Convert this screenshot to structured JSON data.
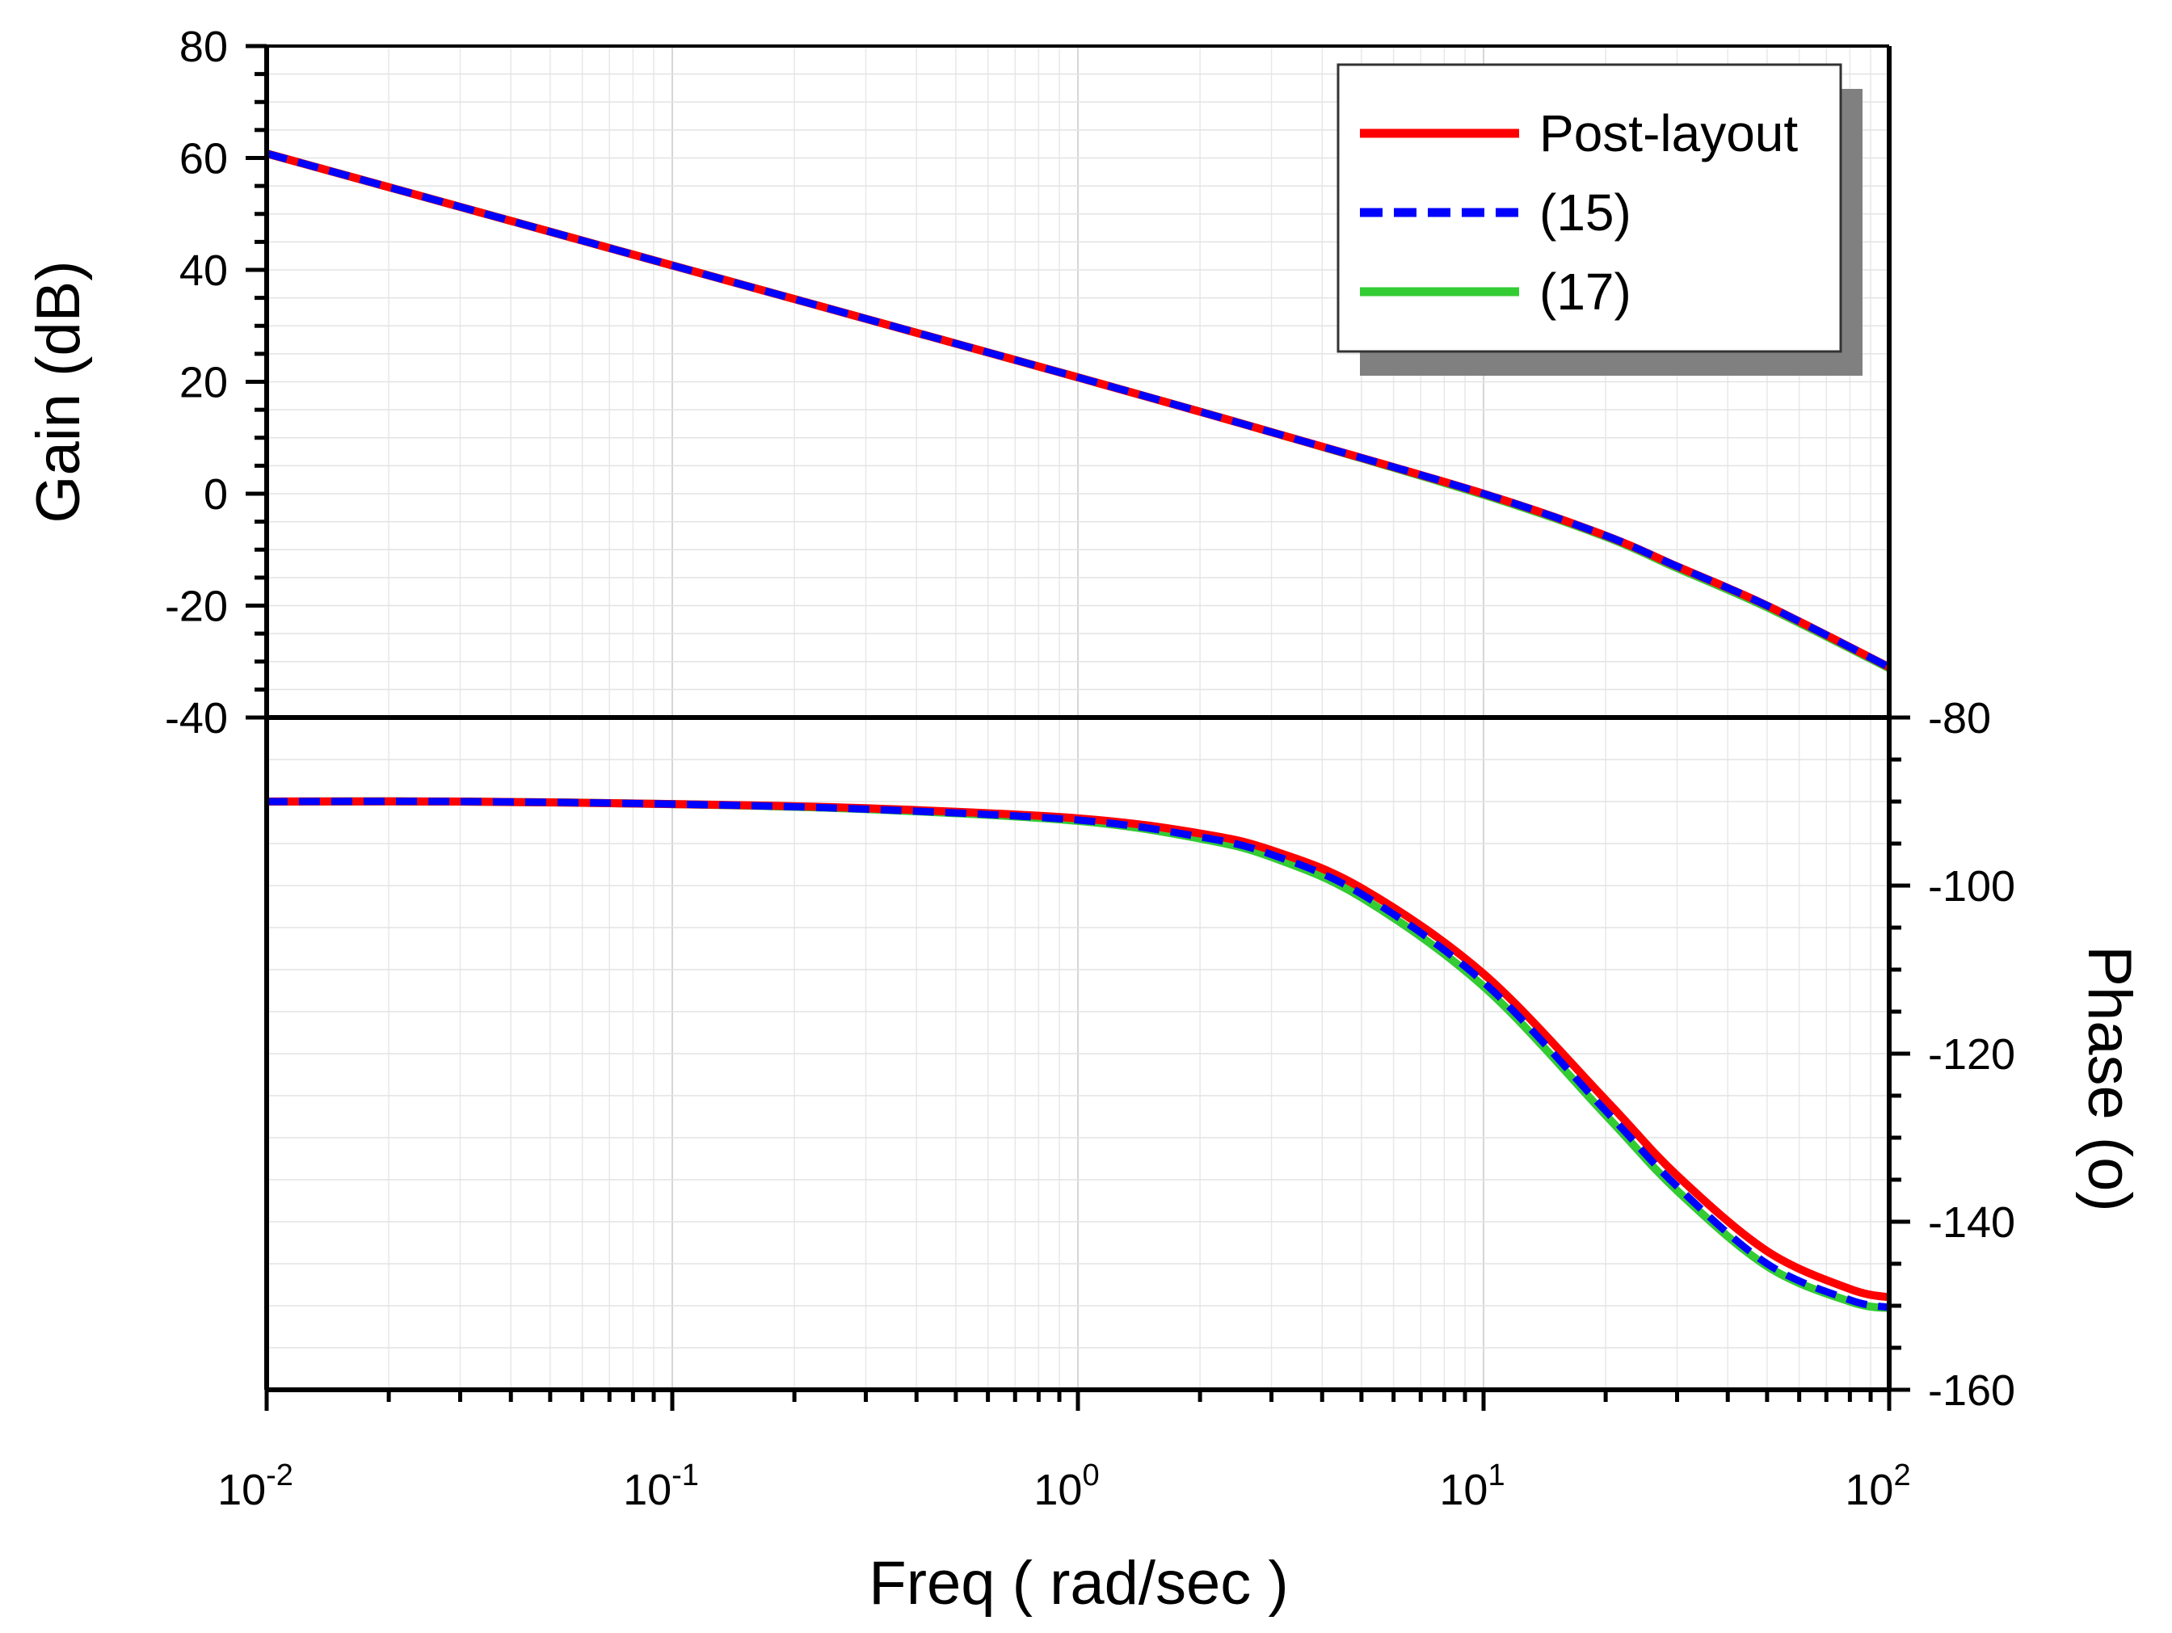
{
  "chart_data": {
    "type": "line",
    "x_scale": "log",
    "xlim": [
      0.01,
      100
    ],
    "x_ticks": [
      {
        "base": "10",
        "exp": "-2"
      },
      {
        "base": "10",
        "exp": "-1"
      },
      {
        "base": "10",
        "exp": "0"
      },
      {
        "base": "10",
        "exp": "1"
      },
      {
        "base": "10",
        "exp": "2"
      }
    ],
    "xlabel": "Freq ( rad/sec )",
    "grid": true,
    "legend_position": "top-right",
    "legend": [
      {
        "name": "Post-layout",
        "color": "#ff0000",
        "style": "solid"
      },
      {
        "name": " (15)",
        "color": "#0000ff",
        "style": "dashed"
      },
      {
        "name": "(17)",
        "color": "#33cc33",
        "style": "solid"
      }
    ],
    "panels": [
      {
        "name": "gain",
        "ylabel": "Gain (dB)",
        "ylim": [
          -40,
          80
        ],
        "y_ticks": [
          "-40",
          "-20",
          "0",
          "20",
          "40",
          "60",
          "80"
        ],
        "axis_side": "left",
        "series": [
          {
            "name": "Post-layout",
            "x": [
              0.01,
              0.1,
              1,
              3,
              10,
              20,
              30,
              50,
              100
            ],
            "y": [
              60.8,
              40.8,
              20.8,
              11.0,
              0.0,
              -7.5,
              -13.0,
              -20.0,
              -31.0
            ]
          },
          {
            "name": " (15)",
            "x": [
              0.01,
              0.1,
              1,
              3,
              10,
              20,
              30,
              50,
              100
            ],
            "y": [
              60.8,
              40.8,
              20.8,
              11.0,
              0.0,
              -7.5,
              -13.0,
              -20.0,
              -31.0
            ]
          },
          {
            "name": "(17)",
            "x": [
              0.01,
              0.1,
              1,
              3,
              10,
              20,
              30,
              50,
              100
            ],
            "y": [
              60.8,
              40.8,
              20.8,
              11.0,
              -0.2,
              -7.7,
              -13.3,
              -20.3,
              -31.2
            ]
          }
        ]
      },
      {
        "name": "phase",
        "ylabel": "Phase (o)",
        "ylim": [
          -160,
          -80
        ],
        "y_ticks": [
          "-160",
          "-140",
          "-120",
          "-100",
          "-80"
        ],
        "axis_side": "right",
        "series": [
          {
            "name": "Post-layout",
            "x": [
              0.01,
              0.03,
              0.1,
              0.3,
              1,
              2,
              3,
              5,
              10,
              20,
              30,
              50,
              80,
              100
            ],
            "y": [
              -90.0,
              -90.0,
              -90.3,
              -90.8,
              -92.0,
              -93.8,
              -95.8,
              -100.3,
              -110.5,
              -125.5,
              -134.5,
              -143.5,
              -148.0,
              -149.0
            ]
          },
          {
            "name": " (15)",
            "x": [
              0.01,
              0.03,
              0.1,
              0.3,
              1,
              2,
              3,
              5,
              10,
              20,
              30,
              50,
              80,
              100
            ],
            "y": [
              -90.0,
              -90.0,
              -90.3,
              -90.9,
              -92.2,
              -94.2,
              -96.3,
              -101.0,
              -111.5,
              -126.8,
              -135.8,
              -145.0,
              -149.3,
              -150.2
            ]
          },
          {
            "name": "(17)",
            "x": [
              0.01,
              0.03,
              0.1,
              0.3,
              1,
              2,
              3,
              5,
              10,
              20,
              30,
              50,
              80,
              100
            ],
            "y": [
              -90.0,
              -90.0,
              -90.3,
              -90.9,
              -92.3,
              -94.4,
              -96.6,
              -101.4,
              -112.0,
              -127.3,
              -136.3,
              -145.3,
              -149.5,
              -150.3
            ]
          }
        ]
      }
    ]
  }
}
